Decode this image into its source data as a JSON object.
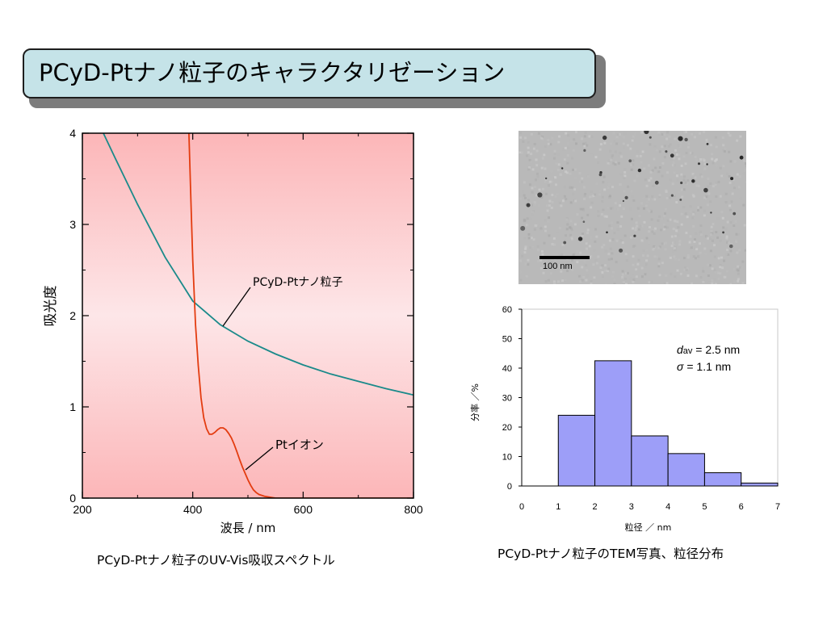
{
  "slide": {
    "title": "PCyD-Ptナノ粒子のキャラクタリゼーション",
    "title_bg": "#c5e3e8"
  },
  "captions": {
    "uv": "PCyD-Ptナノ粒子のUV-Vis吸収スペクトル",
    "tem": "PCyD-Ptナノ粒子のTEM写真、粒径分布"
  },
  "tem_image": {
    "scale_label": "100 nm"
  },
  "chart_data": [
    {
      "type": "line",
      "xlabel": "波長 / nm",
      "ylabel": "吸光度",
      "xlim": [
        200,
        800
      ],
      "ylim": [
        0,
        4
      ],
      "x_ticks": [
        "200",
        "400",
        "600",
        "800"
      ],
      "y_ticks": [
        "0",
        "1",
        "2",
        "3",
        "4"
      ],
      "grid": false,
      "background": "pink gradient",
      "series": [
        {
          "name": "PCyD-Ptナノ粒子",
          "color": "#1a8a8a",
          "x": [
            238,
            260,
            300,
            350,
            400,
            450,
            500,
            550,
            600,
            650,
            700,
            750,
            800
          ],
          "y": [
            4.0,
            3.72,
            3.22,
            2.64,
            2.16,
            1.9,
            1.72,
            1.58,
            1.46,
            1.36,
            1.28,
            1.2,
            1.13
          ]
        },
        {
          "name": "Ptイオン",
          "color": "#e33c10",
          "x": [
            393,
            397,
            400,
            405,
            410,
            415,
            420,
            425,
            430,
            435,
            440,
            445,
            450,
            455,
            460,
            465,
            470,
            475,
            480,
            485,
            490,
            495,
            500,
            505,
            510,
            515,
            520,
            530,
            540,
            550,
            560,
            600,
            700,
            800
          ],
          "y": [
            4.0,
            3.2,
            2.6,
            1.9,
            1.45,
            1.1,
            0.88,
            0.76,
            0.7,
            0.7,
            0.72,
            0.75,
            0.77,
            0.77,
            0.75,
            0.71,
            0.66,
            0.59,
            0.51,
            0.42,
            0.34,
            0.27,
            0.2,
            0.14,
            0.09,
            0.06,
            0.04,
            0.02,
            0.01,
            0.0,
            0.0,
            0.0,
            0.0,
            0.0
          ]
        }
      ],
      "annotations": [
        "PCyD-Ptナノ粒子",
        "Ptイオン"
      ]
    },
    {
      "type": "bar",
      "xlabel": "粒径 ／ nm",
      "ylabel": "分率 ／%",
      "xlim": [
        0,
        7
      ],
      "ylim": [
        0,
        60
      ],
      "x_ticks": [
        "0",
        "1",
        "2",
        "3",
        "4",
        "5",
        "6",
        "7"
      ],
      "y_ticks": [
        "0",
        "10",
        "20",
        "30",
        "40",
        "50",
        "60"
      ],
      "bar_color": "#9d9ef8",
      "bins": [
        [
          1,
          2
        ],
        [
          2,
          3
        ],
        [
          3,
          4
        ],
        [
          4,
          5
        ],
        [
          5,
          6
        ],
        [
          6,
          7
        ]
      ],
      "values": [
        24,
        42.5,
        17,
        11,
        4.5,
        1
      ],
      "annotation_lines": [
        {
          "symbol": "d",
          "sub": "av",
          "text": " = 2.5 nm"
        },
        {
          "symbol": "σ",
          "sub": "",
          "text": "   = 1.1 nm"
        }
      ]
    }
  ]
}
